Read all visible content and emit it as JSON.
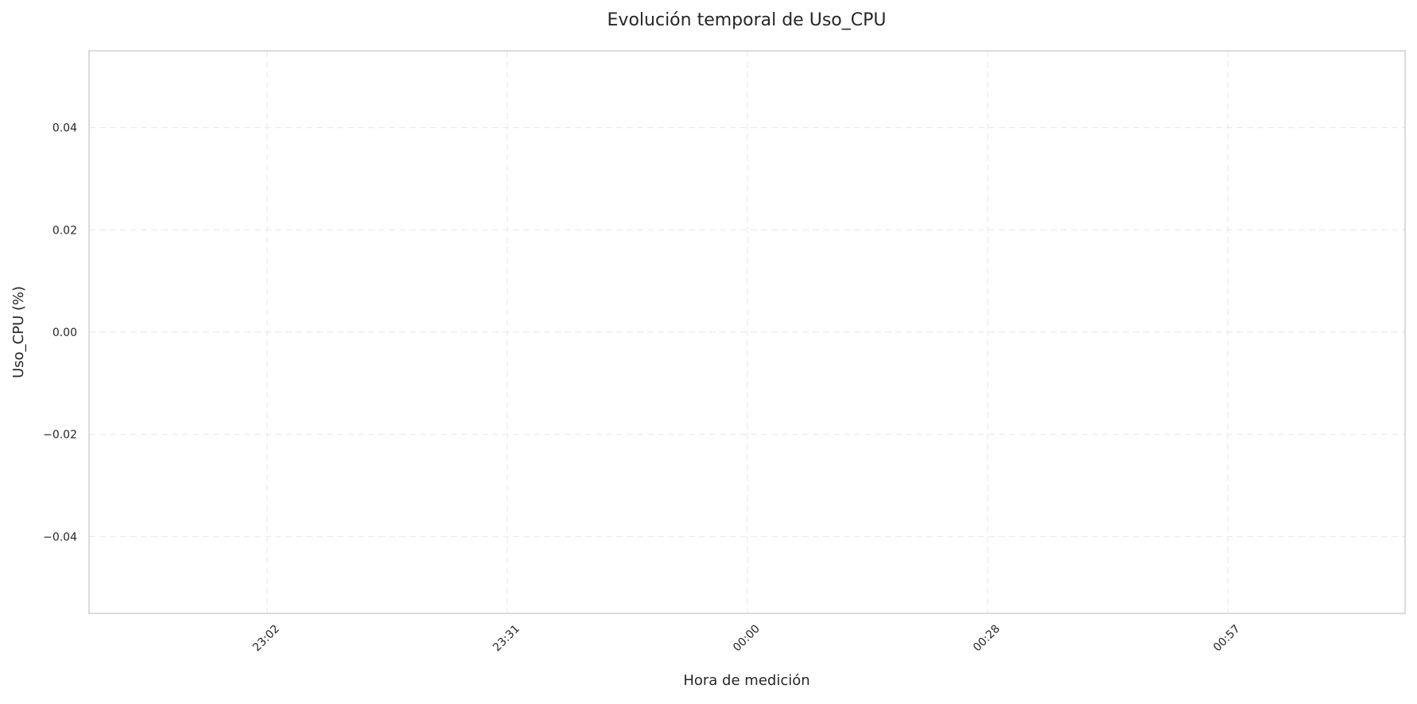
{
  "chart_data": {
    "type": "line",
    "title": "Evolución temporal de Uso_CPU",
    "xlabel": "Hora de medición",
    "ylabel": "Uso_CPU (%)",
    "x_ticks": [
      "23:02",
      "23:31",
      "00:00",
      "00:28",
      "00:57"
    ],
    "y_ticks": [
      "0.04",
      "0.02",
      "0.00",
      "−0.02",
      "−0.04"
    ],
    "y_tick_values": [
      0.04,
      0.02,
      0.0,
      -0.02,
      -0.04
    ],
    "ylim": [
      -0.055,
      0.055
    ],
    "grid": true,
    "series": []
  }
}
